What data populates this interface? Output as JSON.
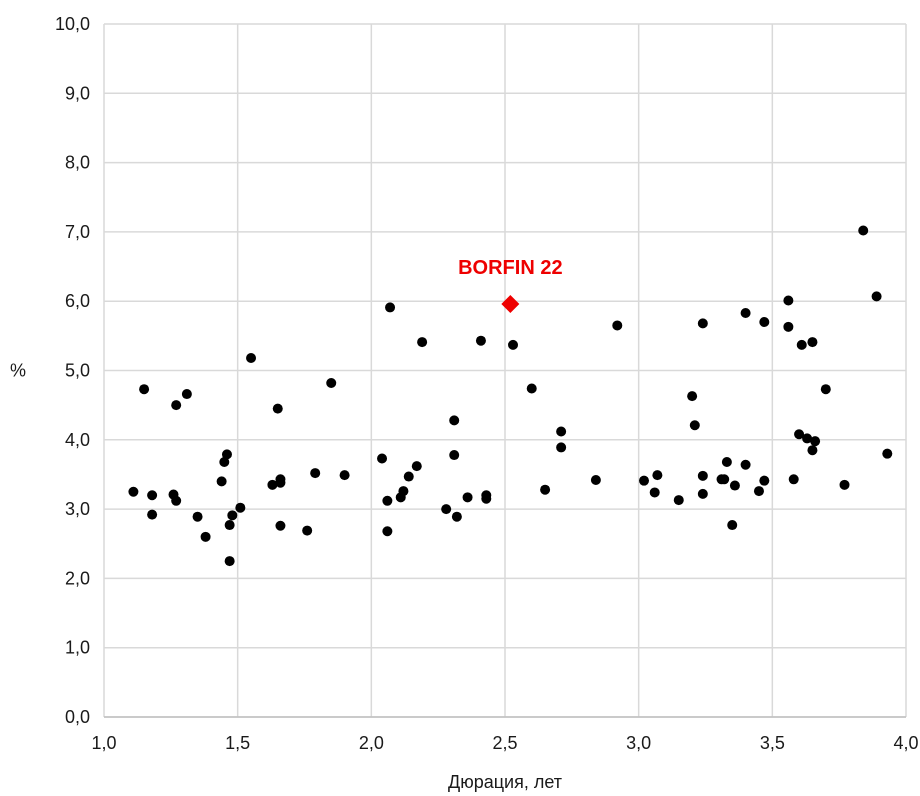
{
  "chart_data": {
    "type": "scatter",
    "title": "",
    "xlabel": "Дюрация, лет",
    "ylabel": "%",
    "xlim": [
      1.0,
      4.0
    ],
    "ylim": [
      0.0,
      10.0
    ],
    "x_ticks": [
      "1,0",
      "1,5",
      "2,0",
      "2,5",
      "3,0",
      "3,5",
      "4,0"
    ],
    "y_ticks": [
      "0,0",
      "1,0",
      "2,0",
      "3,0",
      "4,0",
      "5,0",
      "6,0",
      "7,0",
      "8,0",
      "9,0",
      "10,0"
    ],
    "grid": true,
    "legend": "none",
    "colors": {
      "points": "#000000",
      "highlight": "#ee0000",
      "grid": "#d9d9d9"
    },
    "series": [
      {
        "points": [
          [
            1.11,
            3.25
          ],
          [
            1.15,
            4.73
          ],
          [
            1.18,
            2.92
          ],
          [
            1.18,
            3.2
          ],
          [
            1.26,
            3.21
          ],
          [
            1.27,
            3.12
          ],
          [
            1.27,
            4.5
          ],
          [
            1.31,
            4.66
          ],
          [
            1.35,
            2.89
          ],
          [
            1.38,
            2.6
          ],
          [
            1.44,
            3.4
          ],
          [
            1.45,
            3.68
          ],
          [
            1.46,
            3.79
          ],
          [
            1.47,
            2.25
          ],
          [
            1.47,
            2.77
          ],
          [
            1.48,
            2.91
          ],
          [
            1.51,
            3.02
          ],
          [
            1.55,
            5.18
          ],
          [
            1.63,
            3.35
          ],
          [
            1.65,
            4.45
          ],
          [
            1.66,
            3.38
          ],
          [
            1.66,
            3.43
          ],
          [
            1.66,
            2.76
          ],
          [
            1.76,
            2.69
          ],
          [
            1.79,
            3.52
          ],
          [
            1.85,
            4.82
          ],
          [
            1.9,
            3.49
          ],
          [
            2.04,
            3.73
          ],
          [
            2.06,
            3.12
          ],
          [
            2.06,
            2.68
          ],
          [
            2.07,
            5.91
          ],
          [
            2.11,
            3.17
          ],
          [
            2.12,
            3.26
          ],
          [
            2.14,
            3.47
          ],
          [
            2.17,
            3.62
          ],
          [
            2.19,
            5.41
          ],
          [
            2.28,
            3.0
          ],
          [
            2.31,
            3.78
          ],
          [
            2.31,
            4.28
          ],
          [
            2.32,
            2.89
          ],
          [
            2.36,
            3.17
          ],
          [
            2.41,
            5.43
          ],
          [
            2.43,
            3.2
          ],
          [
            2.43,
            3.15
          ],
          [
            2.53,
            5.37
          ],
          [
            2.6,
            4.74
          ],
          [
            2.65,
            3.28
          ],
          [
            2.71,
            3.89
          ],
          [
            2.71,
            4.12
          ],
          [
            2.84,
            3.42
          ],
          [
            2.92,
            5.65
          ],
          [
            3.02,
            3.41
          ],
          [
            3.06,
            3.24
          ],
          [
            3.07,
            3.49
          ],
          [
            3.15,
            3.13
          ],
          [
            3.2,
            4.63
          ],
          [
            3.21,
            4.21
          ],
          [
            3.24,
            3.22
          ],
          [
            3.24,
            3.48
          ],
          [
            3.24,
            5.68
          ],
          [
            3.31,
            3.43
          ],
          [
            3.32,
            3.43
          ],
          [
            3.33,
            3.68
          ],
          [
            3.35,
            2.77
          ],
          [
            3.36,
            3.34
          ],
          [
            3.4,
            5.83
          ],
          [
            3.4,
            3.64
          ],
          [
            3.45,
            3.26
          ],
          [
            3.47,
            3.41
          ],
          [
            3.47,
            5.7
          ],
          [
            3.56,
            6.01
          ],
          [
            3.56,
            5.63
          ],
          [
            3.58,
            3.43
          ],
          [
            3.6,
            4.08
          ],
          [
            3.61,
            5.37
          ],
          [
            3.63,
            4.02
          ],
          [
            3.65,
            3.85
          ],
          [
            3.66,
            3.98
          ],
          [
            3.65,
            5.41
          ],
          [
            3.7,
            4.73
          ],
          [
            3.77,
            3.35
          ],
          [
            3.84,
            7.02
          ],
          [
            3.89,
            6.07
          ],
          [
            3.93,
            3.8
          ]
        ]
      }
    ],
    "highlight": {
      "label": "BORFIN 22",
      "x": 2.52,
      "y": 5.96,
      "marker": "diamond"
    }
  }
}
